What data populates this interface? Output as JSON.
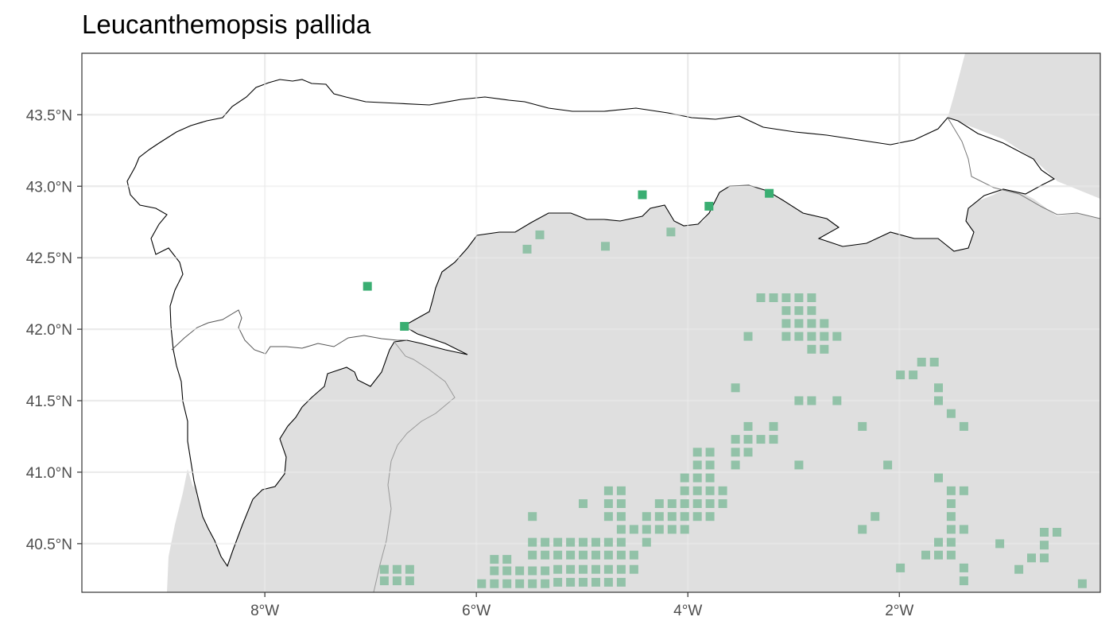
{
  "title": "Leucanthemopsis pallida",
  "axes": {
    "x_ticks": [
      {
        "value": -8,
        "label": "8°W"
      },
      {
        "value": -6,
        "label": "6°W"
      },
      {
        "value": -4,
        "label": "4°W"
      },
      {
        "value": -2,
        "label": "2°W"
      }
    ],
    "y_ticks": [
      {
        "value": 43.5,
        "label": "43.5°N"
      },
      {
        "value": 43.0,
        "label": "43.0°N"
      },
      {
        "value": 42.5,
        "label": "42.5°N"
      },
      {
        "value": 42.0,
        "label": "42.0°N"
      },
      {
        "value": 41.5,
        "label": "41.5°N"
      },
      {
        "value": 41.0,
        "label": "41.0°N"
      },
      {
        "value": 40.5,
        "label": "40.5°N"
      }
    ],
    "xlim": [
      -9.73,
      -0.1
    ],
    "ylim": [
      40.16,
      43.93
    ]
  },
  "colors": {
    "land": "#dfdfdf",
    "study_area": "#ffffff",
    "grid": "#ebebeb",
    "border": "#999999",
    "in_area_point": "#3aae72",
    "out_area_point": "#92c2a8"
  },
  "grid": true,
  "chart_data": {
    "type": "scatter",
    "title": "Leucanthemopsis pallida",
    "xlabel": "",
    "ylabel": "",
    "xlim": [
      -9.73,
      -0.1
    ],
    "ylim": [
      40.16,
      43.93
    ],
    "series": [
      {
        "points": [
          {
            "x": -7.03,
            "y": 42.3
          },
          {
            "x": -6.68,
            "y": 42.02
          },
          {
            "x": -4.43,
            "y": 42.94
          },
          {
            "x": -3.8,
            "y": 42.86
          },
          {
            "x": -3.23,
            "y": 42.95
          }
        ]
      },
      {
        "points": [
          {
            "x": -5.4,
            "y": 42.66
          },
          {
            "x": -5.52,
            "y": 42.56
          },
          {
            "x": -4.78,
            "y": 42.58
          },
          {
            "x": -4.16,
            "y": 42.68
          },
          {
            "x": -3.31,
            "y": 42.22
          },
          {
            "x": -3.19,
            "y": 42.22
          },
          {
            "x": -3.07,
            "y": 42.22
          },
          {
            "x": -2.95,
            "y": 42.22
          },
          {
            "x": -2.83,
            "y": 42.22
          },
          {
            "x": -3.07,
            "y": 42.13
          },
          {
            "x": -2.95,
            "y": 42.13
          },
          {
            "x": -2.83,
            "y": 42.13
          },
          {
            "x": -3.07,
            "y": 42.04
          },
          {
            "x": -2.95,
            "y": 42.04
          },
          {
            "x": -2.83,
            "y": 42.04
          },
          {
            "x": -2.71,
            "y": 42.04
          },
          {
            "x": -3.43,
            "y": 41.95
          },
          {
            "x": -3.07,
            "y": 41.95
          },
          {
            "x": -2.95,
            "y": 41.95
          },
          {
            "x": -2.83,
            "y": 41.95
          },
          {
            "x": -2.71,
            "y": 41.95
          },
          {
            "x": -2.59,
            "y": 41.95
          },
          {
            "x": -2.83,
            "y": 41.86
          },
          {
            "x": -2.71,
            "y": 41.86
          },
          {
            "x": -1.79,
            "y": 41.77
          },
          {
            "x": -1.67,
            "y": 41.77
          },
          {
            "x": -1.99,
            "y": 41.68
          },
          {
            "x": -1.87,
            "y": 41.68
          },
          {
            "x": -3.55,
            "y": 41.59
          },
          {
            "x": -1.63,
            "y": 41.59
          },
          {
            "x": -2.95,
            "y": 41.5
          },
          {
            "x": -2.83,
            "y": 41.5
          },
          {
            "x": -2.59,
            "y": 41.5
          },
          {
            "x": -1.63,
            "y": 41.5
          },
          {
            "x": -1.51,
            "y": 41.41
          },
          {
            "x": -3.43,
            "y": 41.32
          },
          {
            "x": -3.19,
            "y": 41.32
          },
          {
            "x": -2.35,
            "y": 41.32
          },
          {
            "x": -1.39,
            "y": 41.32
          },
          {
            "x": -3.55,
            "y": 41.23
          },
          {
            "x": -3.43,
            "y": 41.23
          },
          {
            "x": -3.31,
            "y": 41.23
          },
          {
            "x": -3.19,
            "y": 41.23
          },
          {
            "x": -3.91,
            "y": 41.14
          },
          {
            "x": -3.79,
            "y": 41.14
          },
          {
            "x": -3.55,
            "y": 41.14
          },
          {
            "x": -3.43,
            "y": 41.14
          },
          {
            "x": -3.91,
            "y": 41.05
          },
          {
            "x": -3.79,
            "y": 41.05
          },
          {
            "x": -3.55,
            "y": 41.05
          },
          {
            "x": -2.95,
            "y": 41.05
          },
          {
            "x": -2.11,
            "y": 41.05
          },
          {
            "x": -4.03,
            "y": 40.96
          },
          {
            "x": -3.91,
            "y": 40.96
          },
          {
            "x": -3.79,
            "y": 40.96
          },
          {
            "x": -1.63,
            "y": 40.96
          },
          {
            "x": -4.75,
            "y": 40.87
          },
          {
            "x": -4.63,
            "y": 40.87
          },
          {
            "x": -4.03,
            "y": 40.87
          },
          {
            "x": -3.91,
            "y": 40.87
          },
          {
            "x": -3.79,
            "y": 40.87
          },
          {
            "x": -3.67,
            "y": 40.87
          },
          {
            "x": -1.51,
            "y": 40.87
          },
          {
            "x": -1.39,
            "y": 40.87
          },
          {
            "x": -4.99,
            "y": 40.78
          },
          {
            "x": -4.75,
            "y": 40.78
          },
          {
            "x": -4.63,
            "y": 40.78
          },
          {
            "x": -4.27,
            "y": 40.78
          },
          {
            "x": -4.15,
            "y": 40.78
          },
          {
            "x": -4.03,
            "y": 40.78
          },
          {
            "x": -3.91,
            "y": 40.78
          },
          {
            "x": -3.79,
            "y": 40.78
          },
          {
            "x": -3.67,
            "y": 40.78
          },
          {
            "x": -1.51,
            "y": 40.78
          },
          {
            "x": -5.47,
            "y": 40.69
          },
          {
            "x": -4.75,
            "y": 40.69
          },
          {
            "x": -4.63,
            "y": 40.69
          },
          {
            "x": -4.39,
            "y": 40.69
          },
          {
            "x": -4.27,
            "y": 40.69
          },
          {
            "x": -4.15,
            "y": 40.69
          },
          {
            "x": -4.03,
            "y": 40.69
          },
          {
            "x": -3.91,
            "y": 40.69
          },
          {
            "x": -3.79,
            "y": 40.69
          },
          {
            "x": -2.23,
            "y": 40.69
          },
          {
            "x": -1.51,
            "y": 40.69
          },
          {
            "x": -4.63,
            "y": 40.6
          },
          {
            "x": -4.51,
            "y": 40.6
          },
          {
            "x": -4.39,
            "y": 40.6
          },
          {
            "x": -4.27,
            "y": 40.6
          },
          {
            "x": -4.15,
            "y": 40.6
          },
          {
            "x": -4.03,
            "y": 40.6
          },
          {
            "x": -2.35,
            "y": 40.6
          },
          {
            "x": -1.51,
            "y": 40.6
          },
          {
            "x": -1.39,
            "y": 40.6
          },
          {
            "x": -0.63,
            "y": 40.58
          },
          {
            "x": -0.51,
            "y": 40.58
          },
          {
            "x": -5.47,
            "y": 40.51
          },
          {
            "x": -5.35,
            "y": 40.51
          },
          {
            "x": -5.23,
            "y": 40.51
          },
          {
            "x": -5.11,
            "y": 40.51
          },
          {
            "x": -4.99,
            "y": 40.51
          },
          {
            "x": -4.87,
            "y": 40.51
          },
          {
            "x": -4.75,
            "y": 40.51
          },
          {
            "x": -4.63,
            "y": 40.51
          },
          {
            "x": -4.39,
            "y": 40.51
          },
          {
            "x": -1.63,
            "y": 40.51
          },
          {
            "x": -1.51,
            "y": 40.51
          },
          {
            "x": -1.05,
            "y": 40.5
          },
          {
            "x": -0.63,
            "y": 40.49
          },
          {
            "x": -5.47,
            "y": 40.42
          },
          {
            "x": -5.35,
            "y": 40.42
          },
          {
            "x": -5.23,
            "y": 40.42
          },
          {
            "x": -5.11,
            "y": 40.42
          },
          {
            "x": -4.99,
            "y": 40.42
          },
          {
            "x": -4.87,
            "y": 40.42
          },
          {
            "x": -4.75,
            "y": 40.42
          },
          {
            "x": -4.63,
            "y": 40.42
          },
          {
            "x": -4.51,
            "y": 40.42
          },
          {
            "x": -1.75,
            "y": 40.42
          },
          {
            "x": -1.63,
            "y": 40.42
          },
          {
            "x": -1.51,
            "y": 40.42
          },
          {
            "x": -0.75,
            "y": 40.4
          },
          {
            "x": -0.63,
            "y": 40.4
          },
          {
            "x": -5.83,
            "y": 40.39
          },
          {
            "x": -5.71,
            "y": 40.39
          },
          {
            "x": -6.87,
            "y": 40.32
          },
          {
            "x": -6.75,
            "y": 40.32
          },
          {
            "x": -6.63,
            "y": 40.32
          },
          {
            "x": -5.83,
            "y": 40.31
          },
          {
            "x": -5.71,
            "y": 40.31
          },
          {
            "x": -5.59,
            "y": 40.31
          },
          {
            "x": -5.47,
            "y": 40.31
          },
          {
            "x": -5.35,
            "y": 40.31
          },
          {
            "x": -5.23,
            "y": 40.32
          },
          {
            "x": -5.11,
            "y": 40.32
          },
          {
            "x": -4.99,
            "y": 40.32
          },
          {
            "x": -4.87,
            "y": 40.32
          },
          {
            "x": -4.75,
            "y": 40.32
          },
          {
            "x": -4.63,
            "y": 40.32
          },
          {
            "x": -4.51,
            "y": 40.32
          },
          {
            "x": -1.99,
            "y": 40.33
          },
          {
            "x": -1.39,
            "y": 40.33
          },
          {
            "x": -0.87,
            "y": 40.32
          },
          {
            "x": -6.87,
            "y": 40.24
          },
          {
            "x": -6.75,
            "y": 40.24
          },
          {
            "x": -6.63,
            "y": 40.24
          },
          {
            "x": -5.95,
            "y": 40.22
          },
          {
            "x": -5.83,
            "y": 40.22
          },
          {
            "x": -5.71,
            "y": 40.22
          },
          {
            "x": -5.59,
            "y": 40.22
          },
          {
            "x": -5.47,
            "y": 40.22
          },
          {
            "x": -5.35,
            "y": 40.22
          },
          {
            "x": -5.23,
            "y": 40.23
          },
          {
            "x": -5.11,
            "y": 40.23
          },
          {
            "x": -4.99,
            "y": 40.23
          },
          {
            "x": -4.87,
            "y": 40.23
          },
          {
            "x": -4.75,
            "y": 40.23
          },
          {
            "x": -4.63,
            "y": 40.23
          },
          {
            "x": -1.39,
            "y": 40.24
          },
          {
            "x": -0.27,
            "y": 40.22
          }
        ]
      }
    ]
  }
}
